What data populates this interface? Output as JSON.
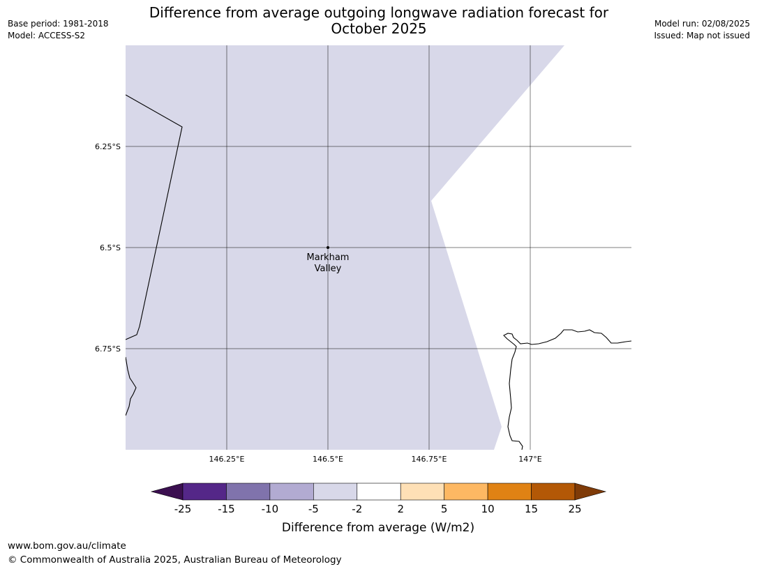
{
  "header": {
    "title_line1": "Difference from average outgoing longwave radiation forecast for",
    "title_line2": "October 2025",
    "base_period": "Base period: 1981-2018",
    "model": "Model: ACCESS-S2",
    "model_run": "Model run: 02/08/2025",
    "issued": "Issued: Map not issued"
  },
  "map": {
    "extent": {
      "lon": [
        146.0,
        147.25
      ],
      "lat": [
        -6.0,
        -7.0
      ]
    },
    "lat_ticks": [
      {
        "value": -6.25,
        "label": "6.25°S"
      },
      {
        "value": -6.5,
        "label": "6.5°S"
      },
      {
        "value": -6.75,
        "label": "6.75°S"
      }
    ],
    "lon_ticks": [
      {
        "value": 146.25,
        "label": "146.25°E"
      },
      {
        "value": 146.5,
        "label": "146.5°E"
      },
      {
        "value": 146.75,
        "label": "146.75°E"
      },
      {
        "value": 147.0,
        "label": "147°E"
      }
    ],
    "location": {
      "name_line1": "Markham",
      "name_line2": "Valley",
      "lon": 146.5,
      "lat": -6.5
    },
    "shaded_category": "-5 to -2",
    "shaded_color": "#d8d8e9",
    "grid": true
  },
  "colorbar": {
    "label": "Difference from average (W/m2)",
    "ticks": [
      "-25",
      "-15",
      "-10",
      "-5",
      "-2",
      "2",
      "5",
      "10",
      "15",
      "25"
    ],
    "under_color": "#3b0f50",
    "over_color": "#7f3b08",
    "colors": [
      "#542788",
      "#8073ac",
      "#b2abd2",
      "#d8d8e9",
      "#ffffff",
      "#fee0b6",
      "#fdb863",
      "#e08214",
      "#b35806"
    ]
  },
  "footer": {
    "url": "www.bom.gov.au/climate",
    "copyright": "© Commonwealth of Australia 2025, Australian Bureau of Meteorology"
  }
}
